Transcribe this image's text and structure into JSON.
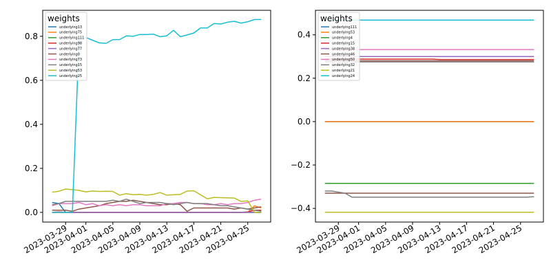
{
  "chart_data": [
    {
      "type": "line",
      "legend_title": "weights",
      "legend_position": "top-left",
      "x_start": "2023-03-27",
      "x_end": "2023-04-27",
      "ylim": [
        -0.044,
        0.918
      ],
      "y_ticks": [
        0.0,
        0.2,
        0.4,
        0.6,
        0.8
      ],
      "y_tick_labels": [
        "0.0",
        "0.2",
        "0.4",
        "0.6",
        "0.8"
      ],
      "x_ticks": [
        "2023-03-29",
        "2023-04-01",
        "2023-04-05",
        "2023-04-09",
        "2023-04-13",
        "2023-04-17",
        "2023-04-21",
        "2023-04-25"
      ],
      "series": [
        {
          "name": "underlying13",
          "color": "#1f77b4",
          "values": [
            0.045,
            0.04,
            0.0,
            0.0,
            0.0,
            0.0,
            0.0,
            0.0,
            0.0,
            0.0,
            0.0,
            0.0,
            0.0,
            0.0,
            0.0,
            0.0,
            0.0,
            0.0,
            0.0,
            0.0,
            0.0,
            0.0,
            0.0,
            0.0,
            0.0,
            0.0,
            0.0,
            0.0,
            0.0,
            0.0,
            0.0,
            0.0
          ]
        },
        {
          "name": "underlying75",
          "color": "#ff7f0e",
          "values": [
            0.0,
            0.0,
            0.0,
            0.0,
            0.0,
            0.0,
            0.0,
            0.0,
            0.0,
            0.0,
            0.0,
            0.0,
            0.0,
            0.0,
            0.0,
            0.0,
            0.0,
            0.0,
            0.0,
            0.0,
            0.0,
            0.0,
            0.0,
            0.0,
            0.0,
            0.0,
            0.0,
            0.0,
            0.0,
            0.0,
            0.03,
            0.02
          ]
        },
        {
          "name": "underlying111",
          "color": "#2ca02c",
          "values": [
            0.0,
            0.0,
            0.0,
            0.0,
            0.0,
            0.0,
            0.0,
            0.0,
            0.0,
            0.0,
            0.0,
            0.0,
            0.0,
            0.0,
            0.0,
            0.0,
            0.0,
            0.0,
            0.0,
            0.0,
            0.0,
            0.0,
            0.0,
            0.0,
            0.0,
            0.0,
            0.0,
            0.0,
            0.0,
            0.0,
            0.0,
            0.0
          ]
        },
        {
          "name": "underlying98",
          "color": "#d62728",
          "values": [
            0.0,
            0.002,
            0.0,
            0.0,
            0.0,
            0.0,
            0.0,
            0.0,
            0.0,
            0.0,
            0.0,
            0.0,
            0.0,
            0.0,
            0.0,
            0.0,
            0.0,
            0.0,
            0.0,
            0.0,
            0.0,
            0.0,
            0.0,
            0.0,
            0.0,
            0.0,
            0.0,
            0.0,
            0.0,
            0.002,
            0.01,
            0.01
          ]
        },
        {
          "name": "underlying77",
          "color": "#9467bd",
          "values": [
            0.0,
            0.0,
            0.0,
            0.0,
            0.0,
            0.0,
            0.0,
            0.0,
            0.0,
            0.0,
            0.0,
            0.0,
            0.0,
            0.0,
            0.0,
            0.0,
            0.0,
            0.0,
            0.0,
            0.0,
            0.0,
            0.0,
            0.0,
            0.0,
            0.0,
            0.0,
            0.0,
            0.0,
            0.0,
            0.0,
            0.0,
            0.0
          ]
        },
        {
          "name": "underlying0",
          "color": "#8c564b",
          "values": [
            0.01,
            0.01,
            0.01,
            0.005,
            0.015,
            0.02,
            0.025,
            0.03,
            0.04,
            0.045,
            0.05,
            0.05,
            0.055,
            0.05,
            0.045,
            0.04,
            0.035,
            0.035,
            0.04,
            0.035,
            0.005,
            0.02,
            0.02,
            0.02,
            0.02,
            0.02,
            0.02,
            0.015,
            0.02,
            0.015,
            0.02,
            0.025
          ]
        },
        {
          "name": "underlying73",
          "color": "#e377c2",
          "values": [
            0.03,
            0.04,
            0.04,
            0.04,
            0.045,
            0.035,
            0.04,
            0.03,
            0.035,
            0.03,
            0.035,
            0.03,
            0.035,
            0.035,
            0.03,
            0.03,
            0.03,
            0.04,
            0.04,
            0.045,
            0.045,
            0.04,
            0.04,
            0.035,
            0.035,
            0.04,
            0.035,
            0.04,
            0.04,
            0.045,
            0.055,
            0.06
          ]
        },
        {
          "name": "underlying15",
          "color": "#7f7f7f",
          "values": [
            0.035,
            0.04,
            0.05,
            0.05,
            0.05,
            0.05,
            0.05,
            0.05,
            0.05,
            0.055,
            0.05,
            0.06,
            0.05,
            0.04,
            0.045,
            0.045,
            0.045,
            0.04,
            0.035,
            0.04,
            0.045,
            0.04,
            0.04,
            0.04,
            0.035,
            0.03,
            0.03,
            0.025,
            0.02,
            0.015,
            0.01,
            0.005
          ]
        },
        {
          "name": "underlying53",
          "color": "#bcbd22",
          "values": [
            0.092,
            0.096,
            0.106,
            0.103,
            0.1,
            0.093,
            0.097,
            0.095,
            0.096,
            0.095,
            0.078,
            0.085,
            0.08,
            0.082,
            0.078,
            0.082,
            0.09,
            0.078,
            0.08,
            0.082,
            0.097,
            0.098,
            0.08,
            0.062,
            0.068,
            0.067,
            0.066,
            0.065,
            0.05,
            0.052,
            0.0,
            0.0
          ]
        },
        {
          "name": "underlying25",
          "color": "#17becf",
          "values": [
            0.0,
            0.0,
            0.0,
            0.0,
            0.79,
            0.795,
            0.782,
            0.77,
            0.768,
            0.785,
            0.785,
            0.802,
            0.8,
            0.808,
            0.808,
            0.81,
            0.798,
            0.802,
            0.827,
            0.798,
            0.806,
            0.815,
            0.838,
            0.838,
            0.858,
            0.856,
            0.864,
            0.868,
            0.86,
            0.866,
            0.876,
            0.876
          ]
        }
      ]
    },
    {
      "type": "line",
      "legend_title": "weights",
      "legend_position": "top-left",
      "x_start": "2023-03-27",
      "x_end": "2023-04-27",
      "ylim": [
        -0.463,
        0.513
      ],
      "y_ticks": [
        -0.4,
        -0.2,
        0.0,
        0.2,
        0.4
      ],
      "y_tick_labels": [
        "−0.4",
        "−0.2",
        "0.0",
        "0.2",
        "0.4"
      ],
      "x_ticks": [
        "2023-03-29",
        "2023-04-01",
        "2023-04-05",
        "2023-04-09",
        "2023-04-13",
        "2023-04-17",
        "2023-04-21",
        "2023-04-25"
      ],
      "series": [
        {
          "name": "underlying111",
          "color": "#1f77b4",
          "values": [
            0.0,
            0.0,
            0.0,
            0.0,
            0.0,
            0.0,
            0.0,
            0.0,
            0.0,
            0.0,
            0.0,
            0.0,
            0.0,
            0.0,
            0.0,
            0.0,
            0.0,
            0.0,
            0.0,
            0.0,
            0.0,
            0.0,
            0.0,
            0.0,
            0.0,
            0.0,
            0.0,
            0.0,
            0.0,
            0.0,
            0.0,
            0.0
          ]
        },
        {
          "name": "underlying53",
          "color": "#ff7f0e",
          "values": [
            0.0,
            0.0,
            0.0,
            0.0,
            0.0,
            0.0,
            0.0,
            0.0,
            0.0,
            0.0,
            0.0,
            0.0,
            0.0,
            0.0,
            0.0,
            0.0,
            0.0,
            0.0,
            0.0,
            0.0,
            0.0,
            0.0,
            0.0,
            0.0,
            0.0,
            0.0,
            0.0,
            0.0,
            0.0,
            0.0,
            0.0,
            0.0
          ]
        },
        {
          "name": "underlying4",
          "color": "#2ca02c",
          "values": [
            -0.285,
            -0.285,
            -0.285,
            -0.285,
            -0.285,
            -0.285,
            -0.285,
            -0.285,
            -0.285,
            -0.285,
            -0.285,
            -0.285,
            -0.285,
            -0.285,
            -0.285,
            -0.285,
            -0.285,
            -0.285,
            -0.285,
            -0.285,
            -0.285,
            -0.285,
            -0.285,
            -0.285,
            -0.285,
            -0.285,
            -0.285,
            -0.285,
            -0.285,
            -0.285,
            -0.285,
            -0.285
          ]
        },
        {
          "name": "underlying15",
          "color": "#d62728",
          "values": [
            0.288,
            0.288,
            0.288,
            0.288,
            0.288,
            0.288,
            0.288,
            0.288,
            0.288,
            0.288,
            0.288,
            0.288,
            0.288,
            0.288,
            0.288,
            0.288,
            0.288,
            0.286,
            0.286,
            0.286,
            0.286,
            0.286,
            0.286,
            0.286,
            0.286,
            0.286,
            0.286,
            0.286,
            0.286,
            0.286,
            0.286,
            0.286
          ]
        },
        {
          "name": "underlying38",
          "color": "#9467bd",
          "values": [
            0.3,
            0.3,
            0.3,
            0.3,
            0.3,
            0.3,
            0.3,
            0.3,
            0.3,
            0.3,
            0.3,
            0.3,
            0.3,
            0.3,
            0.3,
            0.3,
            0.3,
            0.3,
            0.3,
            0.3,
            0.3,
            0.3,
            0.3,
            0.3,
            0.3,
            0.3,
            0.3,
            0.3,
            0.3,
            0.3,
            0.3,
            0.3
          ]
        },
        {
          "name": "underlying46",
          "color": "#8c564b",
          "values": [
            -0.33,
            -0.33,
            -0.33,
            -0.33,
            -0.33,
            -0.33,
            -0.33,
            -0.33,
            -0.33,
            -0.33,
            -0.33,
            -0.33,
            -0.33,
            -0.33,
            -0.33,
            -0.33,
            -0.33,
            -0.33,
            -0.33,
            -0.33,
            -0.33,
            -0.33,
            -0.33,
            -0.33,
            -0.33,
            -0.33,
            -0.33,
            -0.33,
            -0.33,
            -0.33,
            -0.33,
            -0.33
          ]
        },
        {
          "name": "underlying50",
          "color": "#e377c2",
          "values": [
            0.332,
            0.332,
            0.332,
            0.332,
            0.332,
            0.332,
            0.332,
            0.332,
            0.332,
            0.332,
            0.332,
            0.332,
            0.332,
            0.332,
            0.332,
            0.332,
            0.332,
            0.332,
            0.332,
            0.332,
            0.332,
            0.332,
            0.332,
            0.332,
            0.332,
            0.332,
            0.332,
            0.332,
            0.332,
            0.332,
            0.332,
            0.332
          ]
        },
        {
          "name": "underlying32",
          "color": "#7f7f7f",
          "values": [
            -0.32,
            -0.32,
            -0.325,
            -0.33,
            -0.348,
            -0.348,
            -0.348,
            -0.348,
            -0.348,
            -0.348,
            -0.348,
            -0.348,
            -0.348,
            -0.348,
            -0.348,
            -0.348,
            -0.348,
            -0.348,
            -0.348,
            -0.348,
            -0.348,
            -0.348,
            -0.348,
            -0.348,
            -0.348,
            -0.348,
            -0.348,
            -0.348,
            -0.348,
            -0.348,
            -0.348,
            -0.346
          ]
        },
        {
          "name": "underlying21",
          "color": "#bcbd22",
          "values": [
            -0.418,
            -0.418,
            -0.418,
            -0.418,
            -0.418,
            -0.418,
            -0.418,
            -0.418,
            -0.418,
            -0.418,
            -0.418,
            -0.418,
            -0.418,
            -0.418,
            -0.418,
            -0.418,
            -0.418,
            -0.418,
            -0.418,
            -0.418,
            -0.418,
            -0.418,
            -0.418,
            -0.418,
            -0.418,
            -0.418,
            -0.418,
            -0.418,
            -0.418,
            -0.418,
            -0.418,
            -0.418
          ]
        },
        {
          "name": "underlying24",
          "color": "#17becf",
          "values": [
            0.468,
            0.468,
            0.468,
            0.468,
            0.468,
            0.468,
            0.468,
            0.468,
            0.468,
            0.468,
            0.468,
            0.468,
            0.468,
            0.468,
            0.468,
            0.468,
            0.468,
            0.468,
            0.468,
            0.468,
            0.468,
            0.468,
            0.468,
            0.468,
            0.468,
            0.468,
            0.468,
            0.468,
            0.468,
            0.468,
            0.468,
            0.468
          ]
        },
        {
          "name": "",
          "color": "#7f7f7f",
          "values": [
            0.275,
            0.275,
            0.275,
            0.275,
            0.275,
            0.275,
            0.275,
            0.275,
            0.275,
            0.275,
            0.275,
            0.275,
            0.275,
            0.275,
            0.275,
            0.275,
            0.275,
            0.275,
            0.275,
            0.275,
            0.275,
            0.275,
            0.275,
            0.275,
            0.275,
            0.275,
            0.275,
            0.275,
            0.275,
            0.275,
            0.275,
            0.275
          ]
        },
        {
          "name": "",
          "color": "#8c564b",
          "values": [
            0.28,
            0.28,
            0.28,
            0.28,
            0.28,
            0.28,
            0.28,
            0.28,
            0.28,
            0.28,
            0.28,
            0.28,
            0.28,
            0.28,
            0.28,
            0.28,
            0.28,
            0.28,
            0.28,
            0.28,
            0.28,
            0.28,
            0.28,
            0.28,
            0.28,
            0.28,
            0.28,
            0.28,
            0.28,
            0.28,
            0.28,
            0.28
          ]
        }
      ]
    }
  ]
}
